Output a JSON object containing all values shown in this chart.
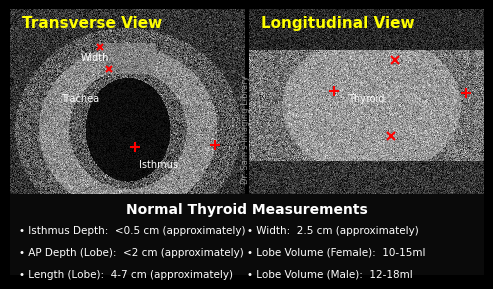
{
  "title_left": "Transverse View",
  "title_right": "Longitudinal View",
  "title_color": "#FFFF00",
  "title_fontsize": 11,
  "bg_color": "#000000",
  "bottom_bg": "#0a0a0a",
  "measurements_title": "Normal Thyroid Measurements",
  "measurements_title_color": "#FFFFFF",
  "measurements_title_fontsize": 10,
  "bullet_color": "#FFFFFF",
  "bullet_fontsize": 7.5,
  "bullets_left": [
    "Isthmus Depth:  <0.5 cm (approximately)",
    "AP Depth (Lobe):  <2 cm (approximately)",
    "Length (Lobe):  4-7 cm (approximately)"
  ],
  "bullets_right": [
    "Width:  2.5 cm (approximately)",
    "Lobe Volume (Female):  10-15ml",
    "Lobe Volume (Male):  12-18ml"
  ],
  "label_isthmus": "Isthmus",
  "label_trachea": "Trachea",
  "label_width": "Width",
  "label_thyroid": "Thyroid",
  "label_color": "#FFFFFF",
  "label_fontsize": 7,
  "red_marker_color": "#FF0000",
  "watermark": "Dr. Sam's Imaging Library",
  "watermark_color": "#CCCCCC",
  "watermark_fontsize": 6
}
